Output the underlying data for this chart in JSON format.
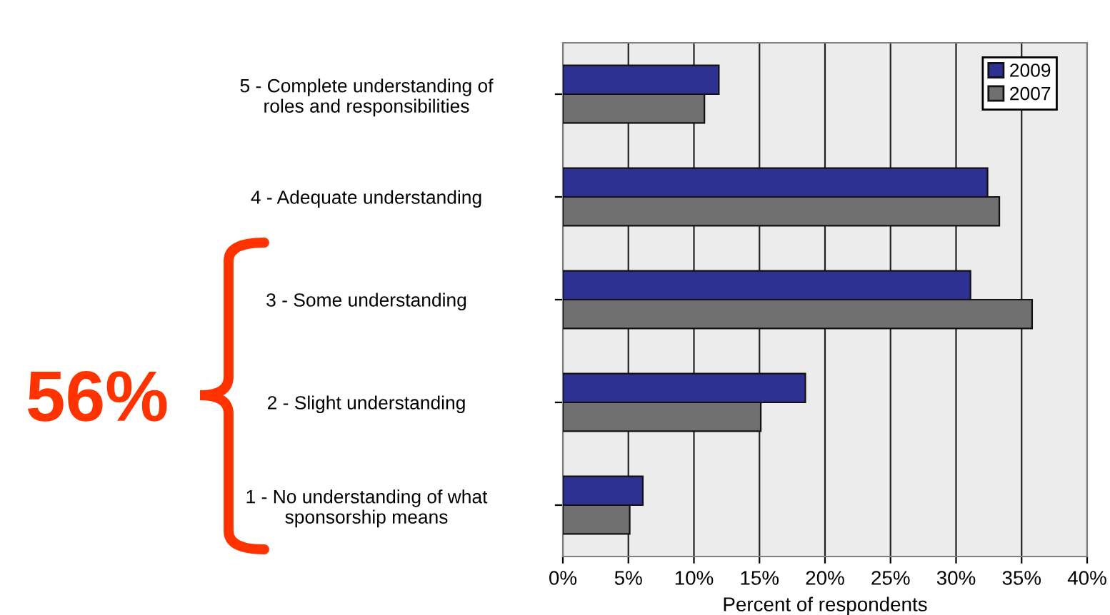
{
  "chart_data": {
    "type": "bar",
    "orientation": "horizontal",
    "xlabel": "Percent of respondents",
    "categories": [
      "5 - Complete understanding of\nroles and responsibilities",
      "4 - Adequate understanding",
      "3 - Some understanding",
      "2 - Slight understanding",
      "1 - No understanding of what\nsponsorship means"
    ],
    "series": [
      {
        "name": "2009",
        "color": "#2e3192",
        "values": [
          11.9,
          32.4,
          31.1,
          18.5,
          6.1
        ]
      },
      {
        "name": "2007",
        "color": "#707070",
        "values": [
          10.8,
          33.3,
          35.8,
          15.1,
          5.1
        ]
      }
    ],
    "xlim": [
      0,
      40
    ],
    "xticks": [
      {
        "value": 0,
        "label": "0%"
      },
      {
        "value": 5,
        "label": "5%"
      },
      {
        "value": 10,
        "label": "10%"
      },
      {
        "value": 15,
        "label": "15%"
      },
      {
        "value": 20,
        "label": "20%"
      },
      {
        "value": 25,
        "label": "25%"
      },
      {
        "value": 30,
        "label": "30%"
      },
      {
        "value": 35,
        "label": "35%"
      },
      {
        "value": 40,
        "label": "40%"
      }
    ],
    "grid": "x",
    "legend": "top right",
    "annotations": [
      "56%"
    ]
  }
}
